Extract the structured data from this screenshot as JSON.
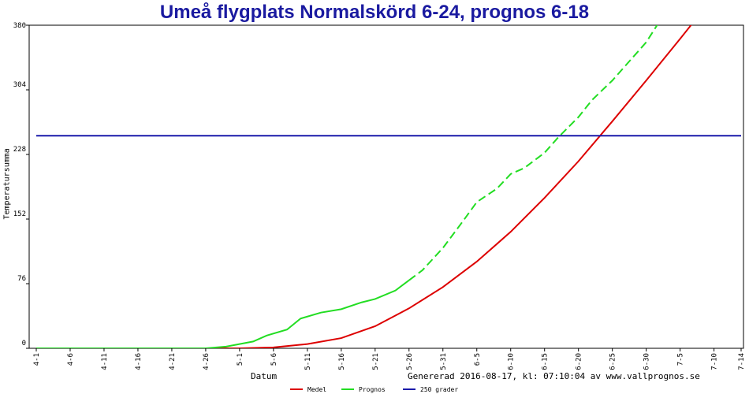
{
  "title": "Umeå flygplats Normalskörd 6-24, prognos 6-18",
  "generated_text": "Genererad 2016-08-17, kl: 07:10:04 av www.vallprognos.se",
  "chart_data": {
    "type": "line",
    "title": "Umeå flygplats Normalskörd 6-24, prognos 6-18",
    "xlabel": "Datum",
    "ylabel": "Temperatursumma",
    "x_ticks": [
      "4-1",
      "4-6",
      "4-11",
      "4-16",
      "4-21",
      "4-26",
      "5-1",
      "5-6",
      "5-11",
      "5-16",
      "5-21",
      "5-26",
      "5-31",
      "6-5",
      "6-10",
      "6-15",
      "6-20",
      "6-25",
      "6-30",
      "7-5",
      "7-10",
      "7-14"
    ],
    "y_ticks": [
      0,
      76,
      152,
      228,
      304,
      380
    ],
    "ylim": [
      0,
      380
    ],
    "grid": false,
    "legend_position": "bottom",
    "series": [
      {
        "name": "Medel",
        "color": "#dd0000",
        "style": "solid",
        "points": [
          [
            "4-1",
            0
          ],
          [
            "4-26",
            0
          ],
          [
            "5-1",
            0
          ],
          [
            "5-6",
            1
          ],
          [
            "5-11",
            5
          ],
          [
            "5-16",
            12
          ],
          [
            "5-21",
            26
          ],
          [
            "5-26",
            47
          ],
          [
            "5-31",
            72
          ],
          [
            "6-5",
            102
          ],
          [
            "6-10",
            137
          ],
          [
            "6-15",
            177
          ],
          [
            "6-20",
            220
          ],
          [
            "6-25",
            267
          ],
          [
            "6-30",
            315
          ],
          [
            "7-5",
            364
          ],
          [
            "7-9",
            404
          ]
        ]
      },
      {
        "name": "Prognos",
        "color": "#22dd22",
        "style": "solid-then-dashed",
        "points": [
          [
            "4-1",
            0
          ],
          [
            "4-26",
            0
          ],
          [
            "4-29",
            2
          ],
          [
            "5-1",
            5
          ],
          [
            "5-3",
            8
          ],
          [
            "5-5",
            15
          ],
          [
            "5-8",
            22
          ],
          [
            "5-10",
            35
          ],
          [
            "5-13",
            42
          ],
          [
            "5-16",
            46
          ],
          [
            "5-19",
            54
          ],
          [
            "5-21",
            58
          ],
          [
            "5-24",
            68
          ],
          [
            "5-26",
            80
          ],
          [
            "5-28",
            92
          ],
          [
            "5-31",
            118
          ],
          [
            "6-3",
            150
          ],
          [
            "6-5",
            172
          ],
          [
            "6-8",
            188
          ],
          [
            "6-10",
            205
          ],
          [
            "6-12",
            212
          ],
          [
            "6-15",
            230
          ],
          [
            "6-17",
            248
          ],
          [
            "6-20",
            272
          ],
          [
            "6-22",
            292
          ],
          [
            "6-25",
            315
          ],
          [
            "6-28",
            342
          ],
          [
            "6-30",
            360
          ],
          [
            "7-2",
            385
          ],
          [
            "7-4",
            405
          ]
        ]
      },
      {
        "name": "250 grader",
        "color": "#1a1aaa",
        "style": "solid",
        "points": [
          [
            "4-1",
            250
          ],
          [
            "7-14",
            250
          ]
        ]
      }
    ]
  },
  "legend": [
    {
      "label": "Medel",
      "color": "#dd0000"
    },
    {
      "label": "Prognos",
      "color": "#22dd22"
    },
    {
      "label": "250 grader",
      "color": "#1a1aaa"
    }
  ]
}
